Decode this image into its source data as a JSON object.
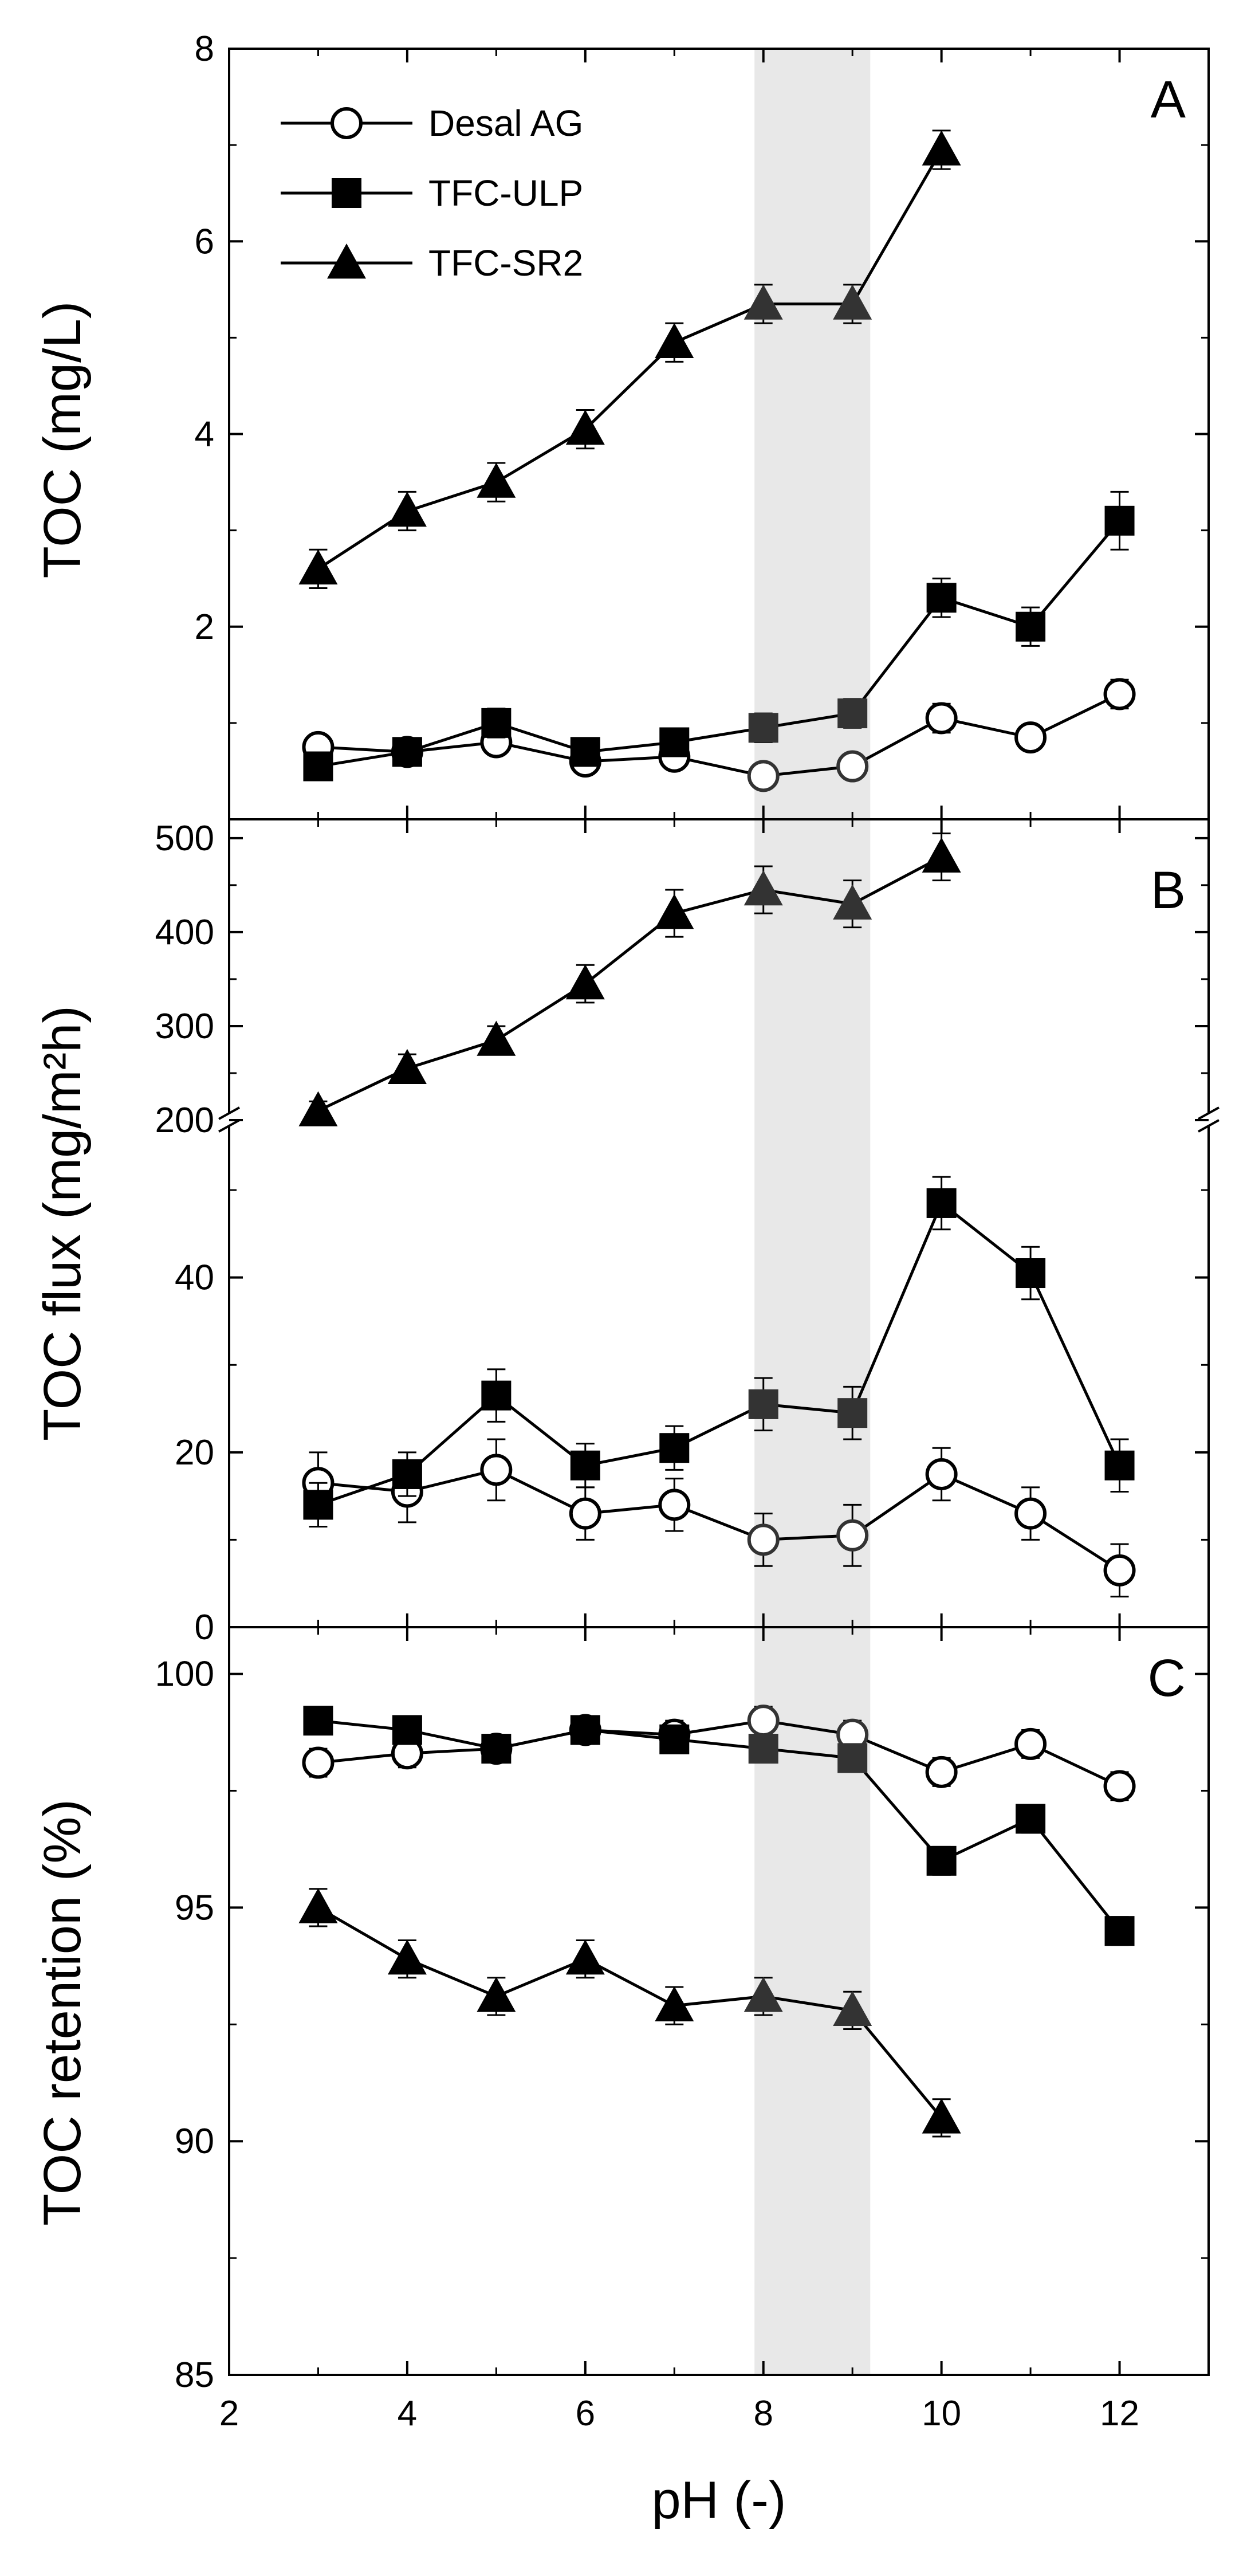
{
  "chart_data": [
    {
      "type": "line",
      "panel_label": "A",
      "ylabel": "TOC (mg/L)",
      "xlabel": "",
      "xlim": [
        2,
        13
      ],
      "ylim": [
        0,
        8
      ],
      "x_ticks": [
        2,
        4,
        6,
        8,
        10,
        12
      ],
      "y_ticks": [
        2,
        4,
        6,
        8
      ],
      "y_tick_labels": [
        "2",
        "4",
        "6",
        "8"
      ],
      "shaded_x_range": [
        7.9,
        9.2
      ],
      "legend": {
        "position": "top-left",
        "entries": [
          "Desal AG",
          "TFC-ULP",
          "TFC-SR2"
        ]
      },
      "series": [
        {
          "name": "Desal AG",
          "marker": "open-circle",
          "x": [
            3,
            4,
            5,
            6,
            7,
            8,
            9,
            10,
            11,
            12
          ],
          "y": [
            0.75,
            0.7,
            0.8,
            0.6,
            0.65,
            0.45,
            0.55,
            1.05,
            0.85,
            1.3
          ],
          "err": [
            0.12,
            0.12,
            0.12,
            0.12,
            0.12,
            0.12,
            0.12,
            0.15,
            0.12,
            0.15
          ]
        },
        {
          "name": "TFC-ULP",
          "marker": "filled-square",
          "x": [
            3,
            4,
            5,
            6,
            7,
            8,
            9,
            10,
            11,
            12
          ],
          "y": [
            0.55,
            0.7,
            1.0,
            0.7,
            0.8,
            0.95,
            1.1,
            2.3,
            2.0,
            3.1
          ],
          "err": [
            0.12,
            0.12,
            0.15,
            0.12,
            0.12,
            0.15,
            0.15,
            0.2,
            0.2,
            0.3
          ]
        },
        {
          "name": "TFC-SR2",
          "marker": "filled-triangle",
          "x": [
            3,
            4,
            5,
            6,
            7,
            8,
            9,
            10
          ],
          "y": [
            2.6,
            3.2,
            3.5,
            4.05,
            4.95,
            5.35,
            5.35,
            6.95
          ],
          "err": [
            0.2,
            0.2,
            0.2,
            0.2,
            0.2,
            0.2,
            0.2,
            0.2
          ]
        }
      ]
    },
    {
      "type": "line",
      "panel_label": "B",
      "ylabel": "TOC flux (mg/m²h)",
      "xlabel": "",
      "xlim": [
        2,
        13
      ],
      "axis_break": true,
      "ylim_lower": [
        0,
        58
      ],
      "ylim_upper": [
        200,
        520
      ],
      "x_ticks": [
        2,
        4,
        6,
        8,
        10,
        12
      ],
      "y_ticks_lower": [
        0,
        20,
        40
      ],
      "y_ticks_upper": [
        200,
        300,
        400,
        500
      ],
      "y_tick_labels": [
        "0",
        "20",
        "40",
        "200",
        "300",
        "400",
        "500"
      ],
      "shaded_x_range": [
        7.9,
        9.2
      ],
      "series": [
        {
          "name": "Desal AG",
          "marker": "open-circle",
          "x": [
            3,
            4,
            5,
            6,
            7,
            8,
            9,
            10,
            11,
            12
          ],
          "y": [
            16.5,
            15.5,
            18,
            13,
            14,
            10,
            10.5,
            17.5,
            13,
            6.5
          ],
          "err": [
            3.5,
            3.5,
            3.5,
            3,
            3,
            3,
            3.5,
            3,
            3,
            3
          ]
        },
        {
          "name": "TFC-ULP",
          "marker": "filled-square",
          "x": [
            3,
            4,
            5,
            6,
            7,
            8,
            9,
            10,
            11,
            12
          ],
          "y": [
            14,
            17.5,
            26.5,
            18.5,
            20.5,
            25.5,
            24.5,
            48.5,
            40.5,
            18.5
          ],
          "err": [
            2.5,
            2.5,
            3,
            2.5,
            2.5,
            3,
            3,
            3,
            3,
            3
          ]
        },
        {
          "name": "TFC-SR2",
          "marker": "filled-triangle",
          "x": [
            3,
            4,
            5,
            6,
            7,
            8,
            9,
            10
          ],
          "y": [
            210,
            255,
            285,
            345,
            420,
            445,
            430,
            480
          ],
          "err": [
            10,
            15,
            15,
            20,
            25,
            25,
            25,
            25
          ]
        }
      ]
    },
    {
      "type": "line",
      "panel_label": "C",
      "ylabel": "TOC retention (%)",
      "xlabel": "pH (-)",
      "xlim": [
        2,
        13
      ],
      "ylim": [
        85,
        101
      ],
      "x_ticks": [
        2,
        4,
        6,
        8,
        10,
        12
      ],
      "x_tick_labels": [
        "2",
        "4",
        "6",
        "8",
        "10",
        "12"
      ],
      "y_ticks": [
        85,
        90,
        95,
        100
      ],
      "y_tick_labels": [
        "85",
        "90",
        "95",
        "100"
      ],
      "shaded_x_range": [
        7.9,
        9.2
      ],
      "series": [
        {
          "name": "Desal AG",
          "marker": "open-circle",
          "x": [
            3,
            4,
            5,
            6,
            7,
            8,
            9,
            10,
            11,
            12
          ],
          "y": [
            98.1,
            98.3,
            98.4,
            98.8,
            98.7,
            99.0,
            98.7,
            97.9,
            98.5,
            97.6
          ],
          "err": [
            0.3,
            0.3,
            0.3,
            0.3,
            0.3,
            0.3,
            0.3,
            0.3,
            0.3,
            0.3
          ]
        },
        {
          "name": "TFC-ULP",
          "marker": "filled-square",
          "x": [
            3,
            4,
            5,
            6,
            7,
            8,
            9,
            10,
            11,
            12
          ],
          "y": [
            99.0,
            98.8,
            98.4,
            98.8,
            98.6,
            98.4,
            98.2,
            96.0,
            96.9,
            94.5
          ],
          "err": [
            0.2,
            0.2,
            0.2,
            0.2,
            0.2,
            0.2,
            0.2,
            0.3,
            0.3,
            0.3
          ]
        },
        {
          "name": "TFC-SR2",
          "marker": "filled-triangle",
          "x": [
            3,
            4,
            5,
            6,
            7,
            8,
            9,
            10
          ],
          "y": [
            95.0,
            93.9,
            93.1,
            93.9,
            92.9,
            93.1,
            92.8,
            90.5
          ],
          "err": [
            0.4,
            0.4,
            0.4,
            0.4,
            0.4,
            0.4,
            0.4,
            0.4
          ]
        }
      ]
    }
  ]
}
